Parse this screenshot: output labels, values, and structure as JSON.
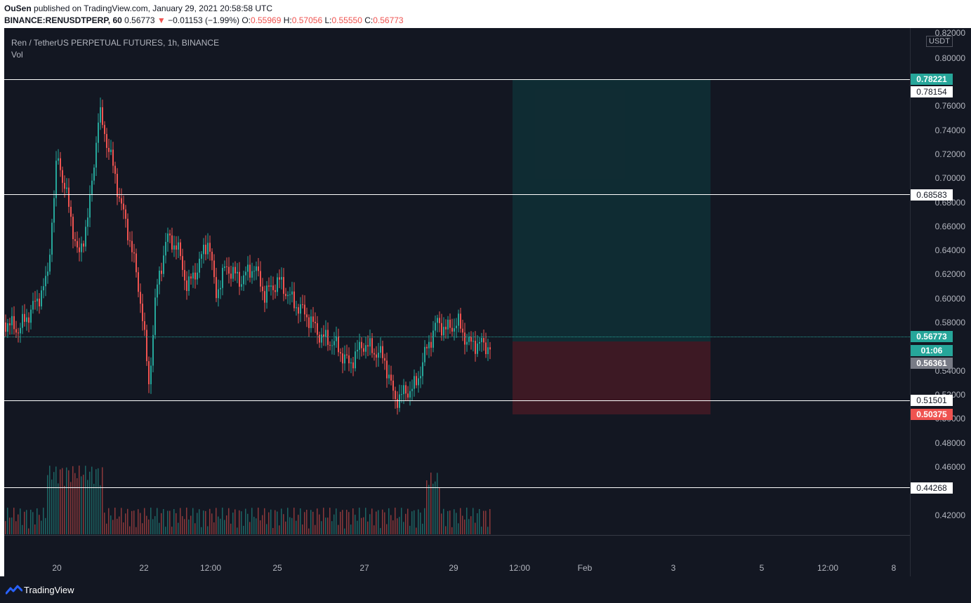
{
  "header": {
    "publisher": "OuSen",
    "published_text": "published on TradingView.com, January 29, 2021 20:58:58 UTC",
    "symbol": "BINANCE:RENUSDTPERP, 60",
    "last": "0.56773",
    "change_arrow": "▼",
    "change": "−0.01153 (−1.99%)",
    "o_label": "O:",
    "o_val": "0.55969",
    "h_label": "H:",
    "h_val": "0.57056",
    "l_label": "L:",
    "l_val": "0.55550",
    "c_label": "C:",
    "c_val": "0.56773"
  },
  "legend": {
    "title": "Ren / TetherUS PERPETUAL FUTURES, 1h, BINANCE",
    "volume": "Vol"
  },
  "price_axis": {
    "currency": "USDT",
    "ticks": [
      "0.82000",
      "0.80000",
      "0.76000",
      "0.74000",
      "0.72000",
      "0.70000",
      "0.68000",
      "0.66000",
      "0.64000",
      "0.62000",
      "0.60000",
      "0.58000",
      "0.54000",
      "0.52000",
      "0.50000",
      "0.48000",
      "0.46000",
      "0.42000"
    ],
    "badges": {
      "target": "0.78221",
      "level1": "0.78154",
      "level2": "0.68583",
      "current": "0.56773",
      "countdown": "01:06",
      "entry": "0.56361",
      "level3": "0.51501",
      "stop": "0.50375",
      "level4": "0.44268"
    }
  },
  "time_axis": {
    "labels": [
      "20",
      "22",
      "12:00",
      "25",
      "27",
      "29",
      "12:00",
      "Feb",
      "3",
      "5",
      "12:00",
      "8"
    ]
  },
  "footer": {
    "brand": "TradingView"
  },
  "colors": {
    "up": "#26a69a",
    "down": "#ef5350",
    "background": "#131722"
  }
}
